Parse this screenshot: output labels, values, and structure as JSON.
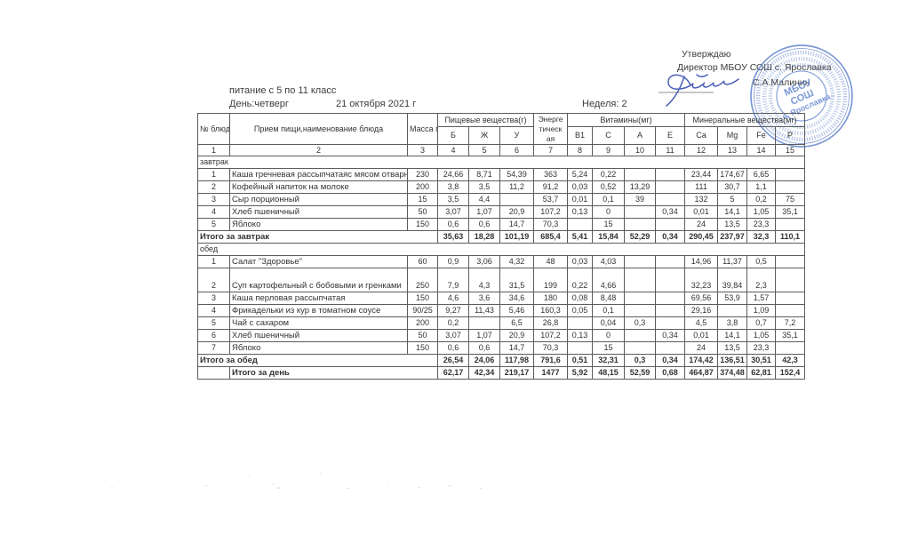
{
  "approval": {
    "title": "Утверждаю",
    "director_line": "Директор МБОУ СОШ с. Ярославка",
    "director_name": "С.А.Малинин"
  },
  "stamp": {
    "line1": "МБОУ",
    "line2": "СОШ",
    "line3": "с. Ярославка"
  },
  "meta": {
    "audience": "питание с 5 по 11 класс",
    "day": "День:четверг",
    "date": "21 октября  2021 г",
    "week": "Неделя: 2"
  },
  "colors": {
    "stamp_blue": "#5f82cc",
    "signature_blue": "#4a5fb8",
    "ink": "#383838",
    "table_line": "#5c5c5c"
  },
  "table": {
    "headers": {
      "num": "№ блюда",
      "name": "Прием пищи,наименование блюда",
      "mass": "Масса порции",
      "nutrients_group": "Пищевые вещества(г)",
      "energy": [
        "Энерге",
        "тическ",
        "ая"
      ],
      "vitamins_group": "Витамины(мг)",
      "minerals_group": "Минеральные вещества(мг)",
      "sub": [
        "Б",
        "Ж",
        "У",
        "В1",
        "С",
        "А",
        "Е",
        "Ca",
        "Mg",
        "Fe",
        "P"
      ],
      "col_numbers": [
        "1",
        "2",
        "3",
        "4",
        "5",
        "6",
        "7",
        "8",
        "9",
        "10",
        "11",
        "12",
        "13",
        "14",
        "15"
      ]
    },
    "sections": [
      {
        "title": "завтрак",
        "rows": [
          {
            "num": "1",
            "name": "Каша гречневая рассыпчатаяс мясом отварным",
            "mass": "230",
            "values": [
              "24,66",
              "8,71",
              "54,39",
              "363",
              "5,24",
              "0,22",
              "",
              "",
              "23,44",
              "174,67",
              "6,65",
              ""
            ]
          },
          {
            "num": "2",
            "name": "Кофейный напиток на молоке",
            "mass": "200",
            "values": [
              "3,8",
              "3,5",
              "11,2",
              "91,2",
              "0,03",
              "0,52",
              "13,29",
              "",
              "111",
              "30,7",
              "1,1",
              ""
            ]
          },
          {
            "num": "3",
            "name": "Сыр порционный",
            "mass": "15",
            "values": [
              "3,5",
              "4,4",
              "",
              "53,7",
              "0,01",
              "0,1",
              "39",
              "",
              "132",
              "5",
              "0,2",
              "75"
            ]
          },
          {
            "num": "4",
            "name": "Хлеб пшеничный",
            "mass": "50",
            "values": [
              "3,07",
              "1,07",
              "20,9",
              "107,2",
              "0,13",
              "0",
              "",
              "0,34",
              "0,01",
              "14,1",
              "1,05",
              "35,1"
            ]
          },
          {
            "num": "5",
            "name": "Яблоко",
            "mass": "150",
            "values": [
              "0,6",
              "0,6",
              "14,7",
              "70,3",
              "",
              "15",
              "",
              "",
              "24",
              "13,5",
              "23,3",
              ""
            ]
          }
        ],
        "total_label": "Итого за завтрак",
        "total_values": [
          "35,63",
          "18,28",
          "101,19",
          "685,4",
          "5,41",
          "15,84",
          "52,29",
          "0,34",
          "290,45",
          "237,97",
          "32,3",
          "110,1"
        ]
      },
      {
        "title": "обед",
        "rows": [
          {
            "num": "1",
            "name": "Салат \"Здоровье\"",
            "mass": "60",
            "values": [
              "0,9",
              "3,06",
              "4,32",
              "48",
              "0,03",
              "4,03",
              "",
              "",
              "14,96",
              "11,37",
              "0,5",
              ""
            ]
          },
          {
            "num": "2",
            "name": "Суп картофельный с бобовыми и гренками",
            "mass": "250",
            "tall": true,
            "values": [
              "7,9",
              "4,3",
              "31,5",
              "199",
              "0,22",
              "4,66",
              "",
              "",
              "32,23",
              "39,84",
              "2,3",
              ""
            ]
          },
          {
            "num": "3",
            "name": "Каша перловая рассыпчатая",
            "mass": "150",
            "values": [
              "4,6",
              "3,6",
              "34,6",
              "180",
              "0,08",
              "8,48",
              "",
              "",
              "69,56",
              "53,9",
              "1,57",
              ""
            ]
          },
          {
            "num": "4",
            "name": "Фрикадельки из кур в томатном соусе",
            "mass": "90/25",
            "values": [
              "9,27",
              "11,43",
              "5,46",
              "160,3",
              "0,05",
              "0,1",
              "",
              "",
              "29,16",
              "",
              "1,09",
              ""
            ]
          },
          {
            "num": "5",
            "name": "Чай с сахаром",
            "mass": "200",
            "values": [
              "0,2",
              "",
              "6,5",
              "26,8",
              "",
              "0,04",
              "0,3",
              "",
              "4,5",
              "3,8",
              "0,7",
              "7,2"
            ]
          },
          {
            "num": "6",
            "name": "Хлеб пшеничный",
            "mass": "50",
            "values": [
              "3,07",
              "1,07",
              "20,9",
              "107,2",
              "0,13",
              "0",
              "",
              "0,34",
              "0,01",
              "14,1",
              "1,05",
              "35,1"
            ]
          },
          {
            "num": "7",
            "name": "Яблоко",
            "mass": "150",
            "values": [
              "0,6",
              "0,6",
              "14,7",
              "70,3",
              "",
              "15",
              "",
              "",
              "24",
              "13,5",
              "23,3",
              ""
            ]
          }
        ],
        "total_label": "Итого за обед",
        "total_values": [
          "26,54",
          "24,06",
          "117,98",
          "791,6",
          "0,51",
          "32,31",
          "0,3",
          "0,34",
          "174,42",
          "136,51",
          "30,51",
          "42,3"
        ]
      }
    ],
    "grand_total": {
      "label": "Итого за день",
      "values": [
        "62,17",
        "42,34",
        "219,17",
        "1477",
        "5,92",
        "48,15",
        "52,59",
        "0,68",
        "464,87",
        "374,48",
        "62,81",
        "152,4"
      ]
    }
  }
}
